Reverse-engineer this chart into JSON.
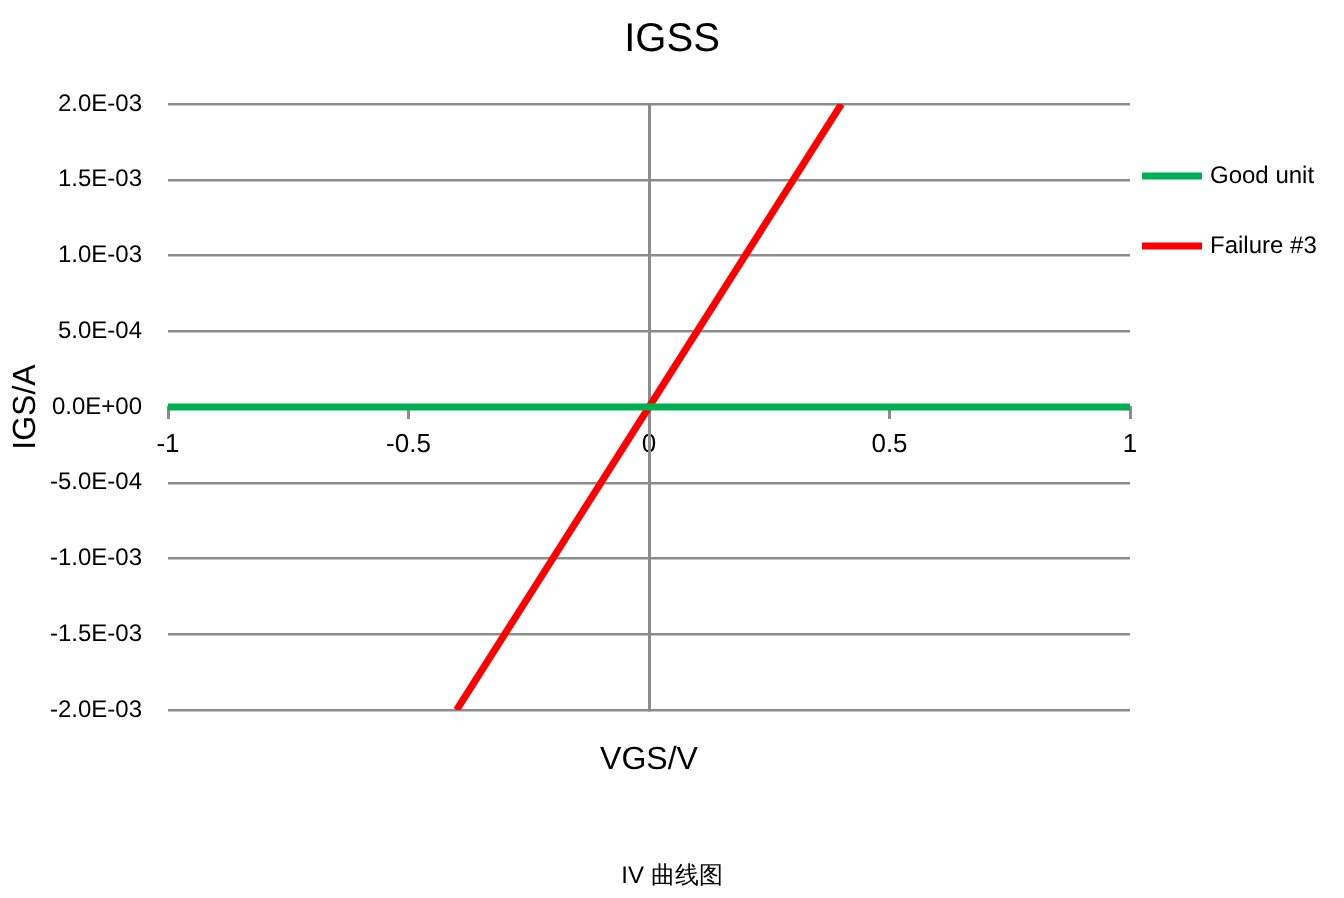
{
  "chart_data": {
    "type": "line",
    "title": "IGSS",
    "xlabel": "VGS/V",
    "ylabel": "IGS/A",
    "annotations": [
      "IV 曲线图"
    ],
    "xlim": [
      -1,
      1
    ],
    "xticks": [
      -1,
      -0.5,
      0,
      0.5,
      1
    ],
    "ylim": [
      -0.002,
      0.002
    ],
    "yticks": [
      {
        "value": -0.002,
        "label": "-2.0E-03"
      },
      {
        "value": -0.0015,
        "label": "-1.5E-03"
      },
      {
        "value": -0.001,
        "label": "-1.0E-03"
      },
      {
        "value": -0.0005,
        "label": "-5.0E-04"
      },
      {
        "value": 0,
        "label": "0.0E+00"
      },
      {
        "value": 0.0005,
        "label": "5.0E-04"
      },
      {
        "value": 0.001,
        "label": "1.0E-03"
      },
      {
        "value": 0.0015,
        "label": "1.5E-03"
      },
      {
        "value": 0.002,
        "label": "2.0E-03"
      }
    ],
    "series": [
      {
        "name": "Good unit",
        "color": "#00b050",
        "x": [
          -1,
          1
        ],
        "values": [
          0,
          0
        ]
      },
      {
        "name": "Failure #3",
        "color": "#ff0000",
        "x": [
          -0.4,
          0,
          0.4
        ],
        "values": [
          -0.002,
          0,
          0.002
        ]
      }
    ],
    "grid": "y",
    "legend": "right",
    "marker": "none",
    "line_style": "solid"
  }
}
